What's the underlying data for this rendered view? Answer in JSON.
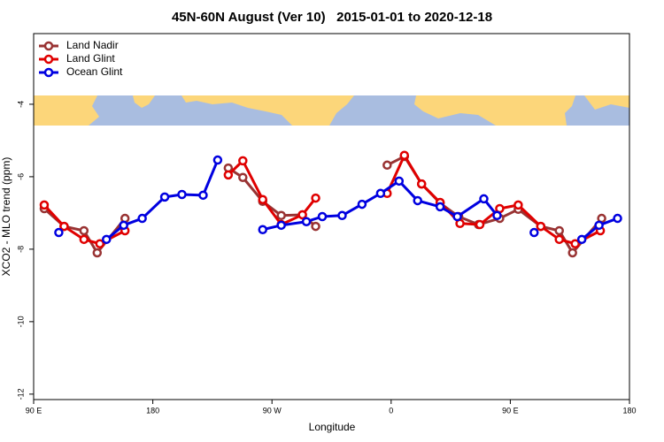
{
  "chart_data": {
    "type": "line",
    "title": "45N-60N August (Ver 10)   2015-01-01 to 2020-12-18",
    "xlabel": "Longitude",
    "ylabel": "XCO2 - MLO trend (ppm)",
    "xlim": [
      90,
      540
    ],
    "ylim": [
      -12.15,
      -2.05
    ],
    "xticks": [
      {
        "value": 90,
        "label": "90 E"
      },
      180,
      {
        "value": 270,
        "label": "90 W"
      },
      {
        "value": 360,
        "label": "0"
      },
      {
        "value": 450,
        "label": "90 E"
      },
      {
        "value": 540,
        "label": "180"
      }
    ],
    "yticks": [
      -4,
      -6,
      -8,
      -10,
      -12
    ],
    "legend": "upper left",
    "series": [
      {
        "name": "Land Nadir",
        "color": "#993333",
        "x": [
          98,
          113,
          128,
          138,
          159,
          null,
          237,
          248,
          263,
          277,
          293,
          303,
          null,
          357,
          370,
          383,
          397,
          411,
          426,
          442,
          456,
          473,
          487,
          497,
          519
        ],
        "values": [
          -6.88,
          -7.37,
          -7.49,
          -8.1,
          -7.15,
          null,
          -5.76,
          -6.02,
          -6.68,
          -7.07,
          -7.05,
          -7.37,
          null,
          -5.68,
          -5.44,
          -6.2,
          -6.73,
          -7.1,
          -7.32,
          -7.15,
          -6.9,
          -7.37,
          -7.49,
          -8.1,
          -7.15
        ]
      },
      {
        "name": "Land Glint",
        "color": "#e00000",
        "x": [
          98,
          113,
          128,
          140,
          159,
          null,
          237,
          248,
          263,
          277,
          293,
          303,
          null,
          357,
          370,
          383,
          397,
          412,
          427,
          442,
          456,
          473,
          487,
          499,
          518
        ],
        "values": [
          -6.78,
          -7.37,
          -7.73,
          -7.85,
          -7.49,
          null,
          -5.95,
          -5.56,
          -6.63,
          -7.32,
          -7.05,
          -6.59,
          null,
          -6.46,
          -5.41,
          -6.2,
          -6.71,
          -7.29,
          -7.32,
          -6.88,
          -6.78,
          -7.37,
          -7.73,
          -7.85,
          -7.49
        ]
      },
      {
        "name": "Ocean Glint",
        "color": "#0000e0",
        "x": [
          109,
          null,
          145,
          158,
          172,
          189,
          202,
          218,
          229,
          null,
          263,
          277,
          296,
          308,
          323,
          338,
          352,
          366,
          380,
          397,
          410,
          430,
          440,
          null,
          468,
          null,
          504,
          517,
          531
        ],
        "values": [
          -7.54,
          null,
          -7.73,
          -7.34,
          -7.15,
          -6.56,
          -6.49,
          -6.51,
          -5.54,
          null,
          -7.46,
          -7.34,
          -7.24,
          -7.1,
          -7.07,
          -6.76,
          -6.46,
          -6.12,
          -6.66,
          -6.83,
          -7.1,
          -6.61,
          -7.07,
          null,
          -7.54,
          null,
          -7.73,
          -7.34,
          -7.15
        ]
      }
    ]
  }
}
